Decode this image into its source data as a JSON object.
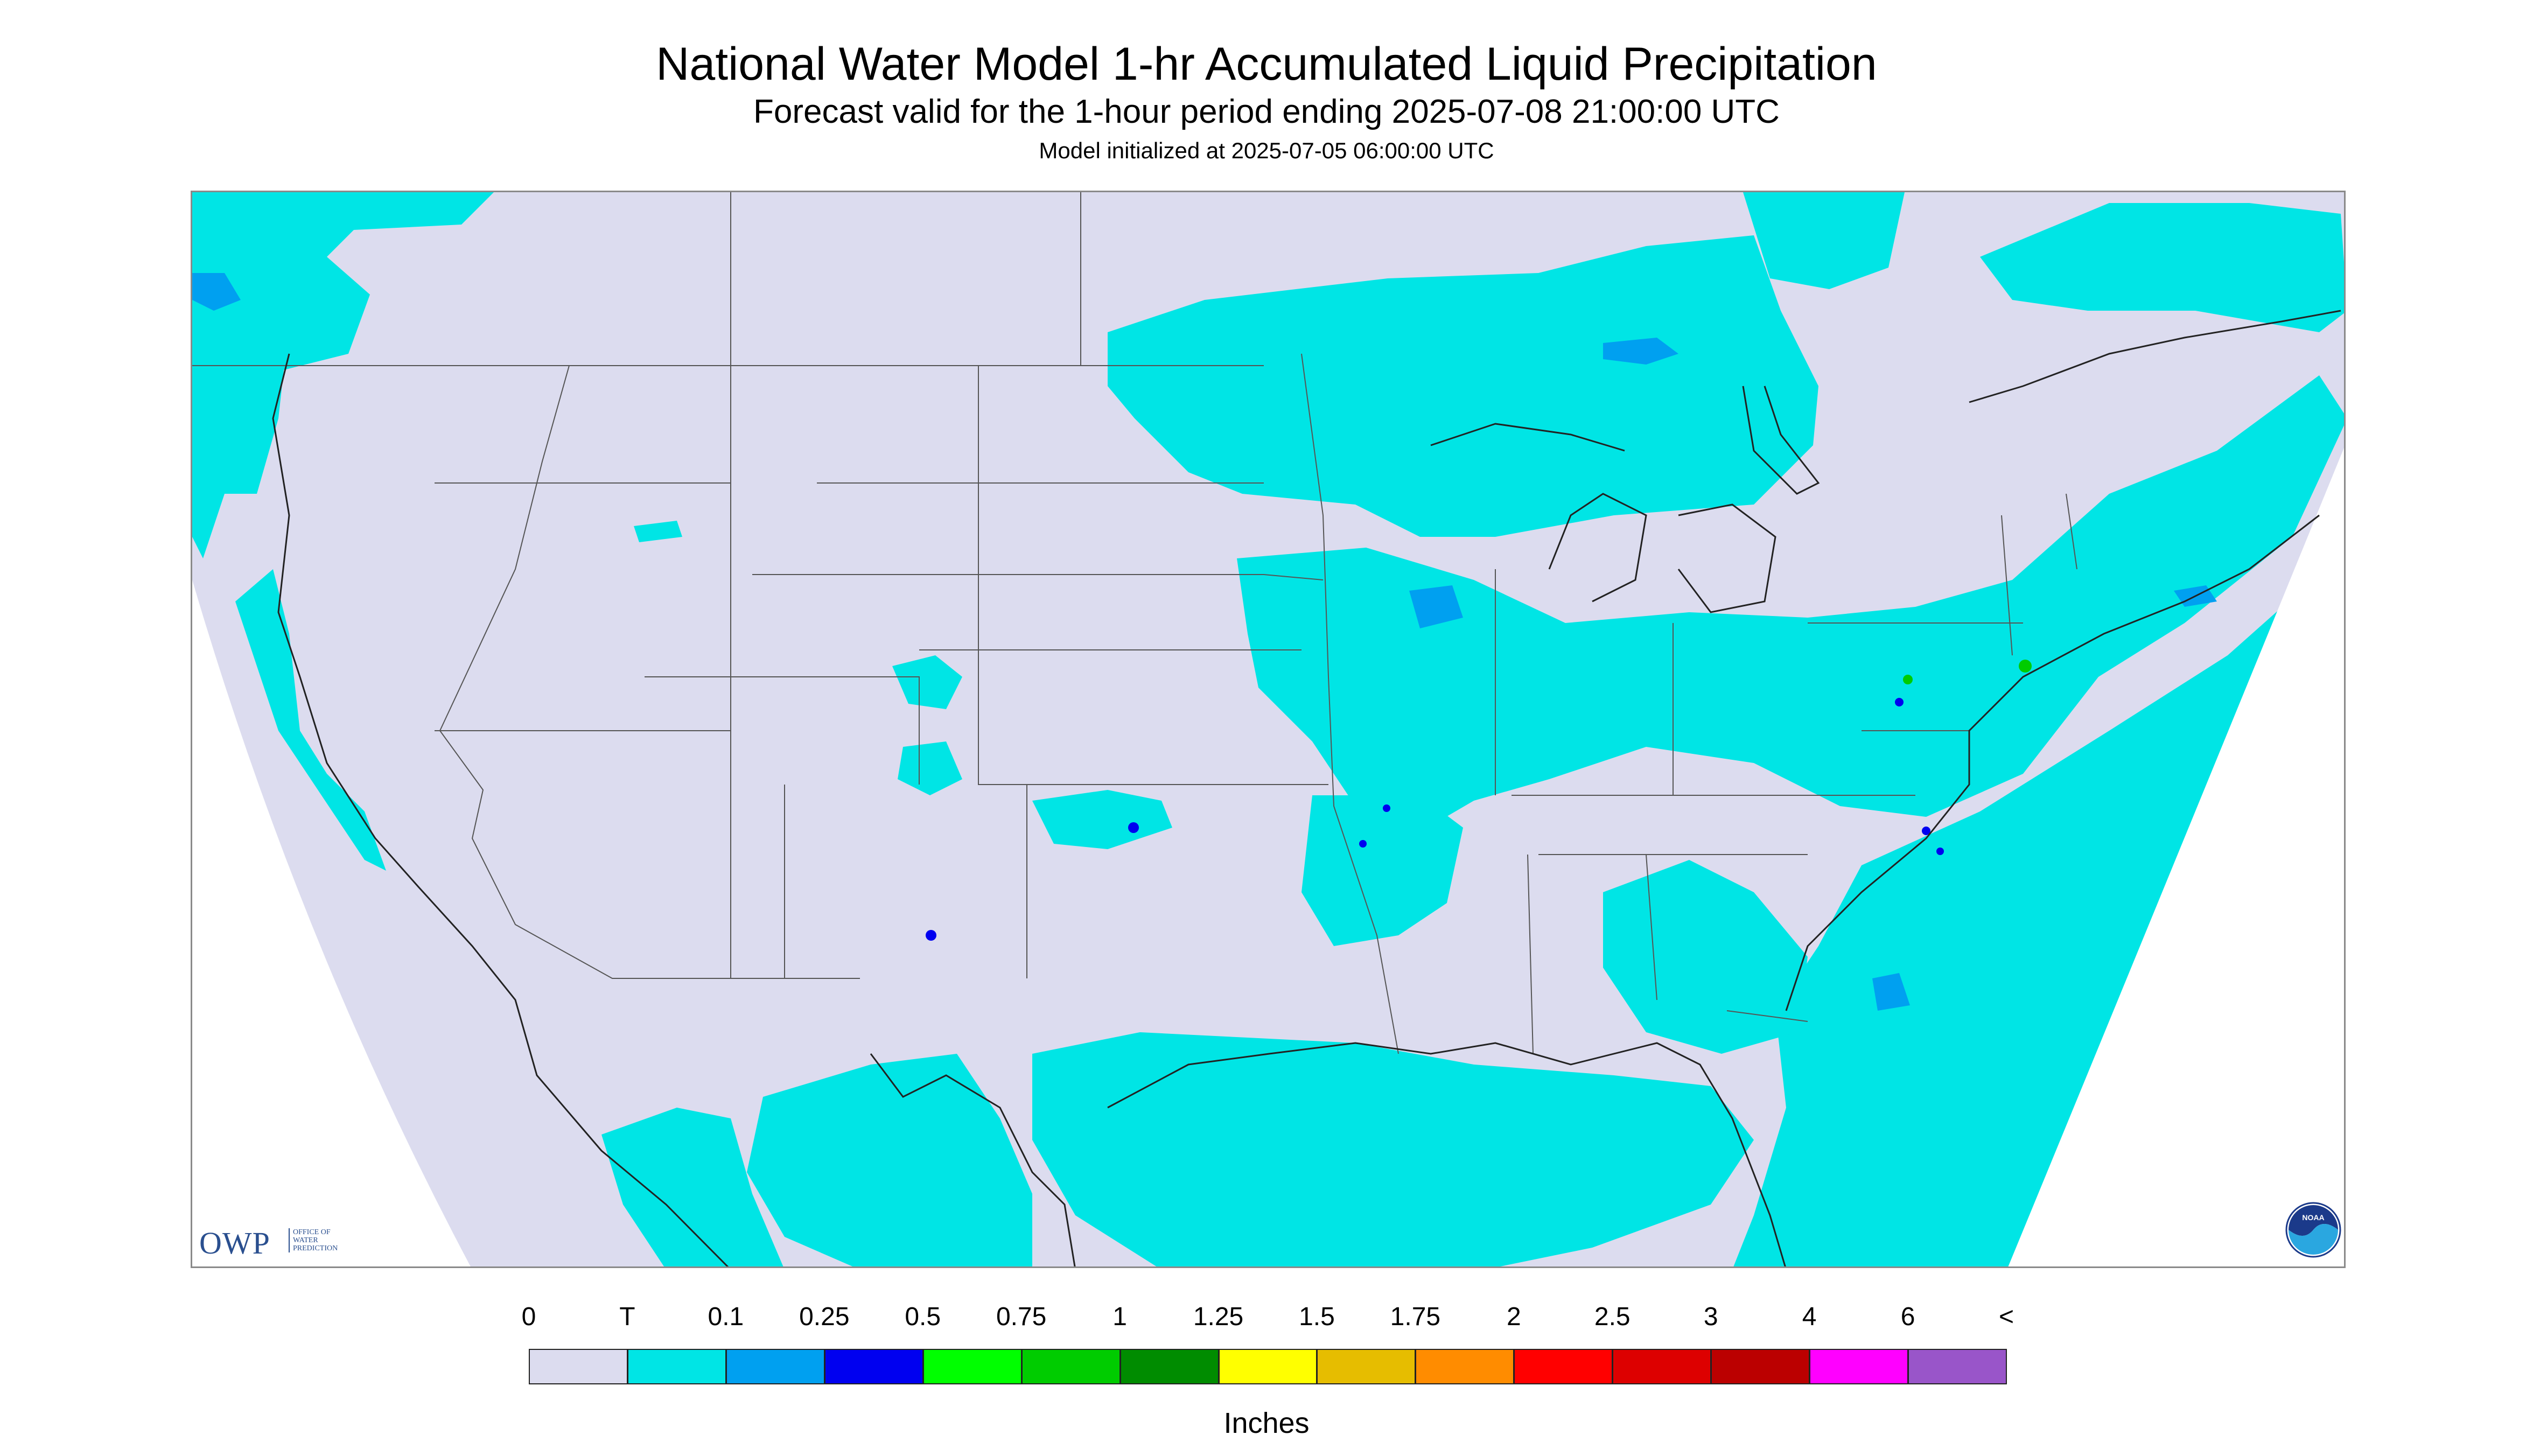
{
  "header": {
    "title": "National Water Model 1-hr Accumulated Liquid Precipitation",
    "subtitle": "Forecast valid for the 1-hour period ending 2025-07-08 21:00:00 UTC",
    "init": "Model initialized at 2025-07-05 06:00:00 UTC"
  },
  "logos": {
    "owp_word": "OWP",
    "owp_sub": [
      "OFFICE OF",
      "WATER",
      "PREDICTION"
    ],
    "noaa_text": "NOAA"
  },
  "legend": {
    "units": "Inches",
    "ticks": [
      "0",
      "T",
      "0.1",
      "0.25",
      "0.5",
      "0.75",
      "1",
      "1.25",
      "1.5",
      "1.75",
      "2",
      "2.5",
      "3",
      "4",
      "6",
      "<"
    ],
    "colors": [
      "#dcdcef",
      "#00e5e5",
      "#00a0f0",
      "#0000f0",
      "#00ff00",
      "#00cc00",
      "#008c00",
      "#ffff00",
      "#e6bd00",
      "#ff8c00",
      "#ff0000",
      "#dd0000",
      "#bb0000",
      "#ff00ff",
      "#9955c9"
    ]
  },
  "map": {
    "background": "#dcdcef",
    "trace_color": "#00e5e5",
    "light_color": "#00a0f0",
    "moderate_color": "#0000f0",
    "heavy_color": "#00ff00",
    "border_color": "#555555"
  }
}
